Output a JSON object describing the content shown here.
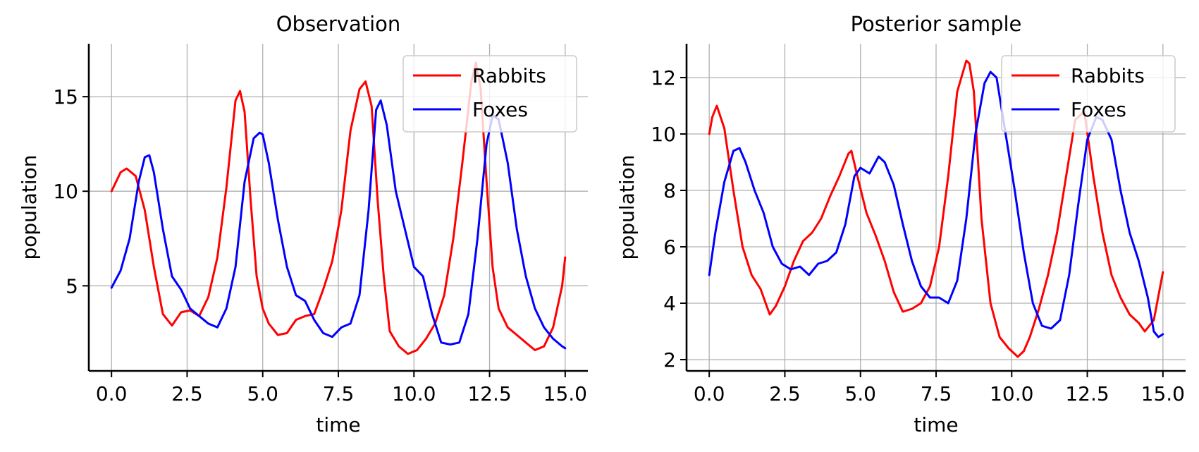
{
  "chart_data": [
    {
      "type": "line",
      "title": "Observation",
      "xlabel": "time",
      "ylabel": "population",
      "xlim": [
        -0.75,
        15.75
      ],
      "ylim": [
        0.5,
        17.8
      ],
      "xticks": [
        0,
        2.5,
        5,
        7.5,
        10,
        12.5,
        15
      ],
      "xtick_labels": [
        "0.0",
        "2.5",
        "5.0",
        "7.5",
        "10.0",
        "12.5",
        "15.0"
      ],
      "yticks": [
        5,
        10,
        15
      ],
      "ytick_labels": [
        "5",
        "10",
        "15"
      ],
      "grid": true,
      "legend_position": "upper right",
      "series": [
        {
          "name": "Rabbits",
          "color": "#ff0000",
          "x": [
            0,
            0.3,
            0.5,
            0.8,
            1.1,
            1.4,
            1.7,
            2.0,
            2.3,
            2.6,
            2.9,
            3.2,
            3.5,
            3.8,
            4.1,
            4.25,
            4.4,
            4.6,
            4.8,
            5.0,
            5.2,
            5.5,
            5.8,
            6.1,
            6.4,
            6.7,
            7.0,
            7.3,
            7.6,
            7.9,
            8.2,
            8.4,
            8.6,
            8.8,
            9.0,
            9.2,
            9.5,
            9.8,
            10.1,
            10.4,
            10.7,
            11.0,
            11.3,
            11.6,
            11.9,
            12.05,
            12.2,
            12.4,
            12.6,
            12.8,
            13.1,
            13.4,
            13.7,
            14.0,
            14.3,
            14.6,
            14.9,
            15.0
          ],
          "y": [
            10.0,
            11.0,
            11.2,
            10.8,
            9.0,
            6.0,
            3.5,
            2.9,
            3.6,
            3.7,
            3.4,
            4.4,
            6.5,
            10.2,
            14.8,
            15.3,
            14.2,
            9.5,
            5.5,
            3.8,
            3.0,
            2.4,
            2.5,
            3.2,
            3.4,
            3.5,
            4.8,
            6.3,
            9.0,
            13.2,
            15.4,
            15.8,
            14.5,
            9.5,
            5.5,
            2.6,
            1.8,
            1.4,
            1.6,
            2.2,
            3.0,
            4.5,
            7.5,
            11.5,
            15.8,
            16.8,
            15.5,
            10.5,
            6.0,
            3.8,
            2.8,
            2.4,
            2.0,
            1.6,
            1.8,
            2.8,
            5.0,
            6.5
          ]
        },
        {
          "name": "Foxes",
          "color": "#0000ff",
          "x": [
            0,
            0.3,
            0.6,
            0.9,
            1.1,
            1.25,
            1.4,
            1.7,
            2.0,
            2.3,
            2.6,
            2.9,
            3.2,
            3.5,
            3.8,
            4.1,
            4.4,
            4.7,
            4.9,
            5.0,
            5.2,
            5.5,
            5.8,
            6.1,
            6.4,
            6.7,
            7.0,
            7.3,
            7.6,
            7.9,
            8.2,
            8.5,
            8.75,
            8.9,
            9.1,
            9.4,
            9.7,
            10.0,
            10.3,
            10.6,
            10.9,
            11.2,
            11.5,
            11.8,
            12.1,
            12.4,
            12.6,
            12.8,
            13.1,
            13.4,
            13.7,
            14.0,
            14.3,
            14.6,
            14.9,
            15.0
          ],
          "y": [
            4.9,
            5.8,
            7.5,
            10.5,
            11.8,
            11.9,
            11.0,
            8.0,
            5.5,
            4.8,
            3.8,
            3.4,
            3.0,
            2.8,
            3.8,
            6.0,
            10.5,
            12.8,
            13.1,
            13.0,
            11.5,
            8.5,
            6.0,
            4.5,
            4.2,
            3.2,
            2.5,
            2.3,
            2.8,
            3.0,
            4.5,
            9.0,
            14.3,
            14.8,
            13.5,
            10.0,
            8.0,
            6.0,
            5.5,
            3.5,
            2.0,
            1.9,
            2.0,
            3.5,
            7.5,
            12.5,
            14.0,
            13.8,
            11.5,
            8.0,
            5.5,
            3.8,
            2.8,
            2.2,
            1.8,
            1.7
          ]
        }
      ]
    },
    {
      "type": "line",
      "title": "Posterior sample",
      "xlabel": "time",
      "ylabel": "population",
      "xlim": [
        -0.75,
        15.75
      ],
      "ylim": [
        1.6,
        13.2
      ],
      "xticks": [
        0,
        2.5,
        5,
        7.5,
        10,
        12.5,
        15
      ],
      "xtick_labels": [
        "0.0",
        "2.5",
        "5.0",
        "7.5",
        "10.0",
        "12.5",
        "15.0"
      ],
      "yticks": [
        2,
        4,
        6,
        8,
        10,
        12
      ],
      "ytick_labels": [
        "2",
        "4",
        "6",
        "8",
        "10",
        "12"
      ],
      "grid": true,
      "legend_position": "upper right",
      "series": [
        {
          "name": "Rabbits",
          "color": "#ff0000",
          "x": [
            0,
            0.1,
            0.25,
            0.5,
            0.8,
            1.1,
            1.4,
            1.7,
            2.0,
            2.2,
            2.5,
            2.8,
            3.1,
            3.4,
            3.7,
            4.0,
            4.3,
            4.6,
            4.7,
            4.9,
            5.2,
            5.5,
            5.8,
            6.1,
            6.4,
            6.7,
            7.0,
            7.3,
            7.6,
            7.9,
            8.2,
            8.5,
            8.6,
            8.75,
            9.0,
            9.3,
            9.6,
            9.9,
            10.2,
            10.4,
            10.6,
            10.9,
            11.2,
            11.5,
            11.8,
            12.1,
            12.4,
            12.7,
            13.0,
            13.3,
            13.6,
            13.9,
            14.2,
            14.4,
            14.7,
            15.0
          ],
          "y": [
            10.0,
            10.6,
            11.0,
            10.2,
            8.0,
            6.0,
            5.0,
            4.5,
            3.6,
            3.9,
            4.6,
            5.5,
            6.2,
            6.5,
            7.0,
            7.8,
            8.5,
            9.3,
            9.4,
            8.5,
            7.2,
            6.4,
            5.5,
            4.4,
            3.7,
            3.8,
            4.0,
            4.6,
            6.0,
            8.5,
            11.5,
            12.6,
            12.5,
            11.5,
            7.0,
            4.0,
            2.8,
            2.4,
            2.1,
            2.3,
            2.8,
            3.8,
            5.0,
            6.5,
            8.5,
            10.5,
            10.8,
            8.5,
            6.5,
            5.0,
            4.2,
            3.6,
            3.3,
            3.0,
            3.4,
            5.1
          ]
        },
        {
          "name": "Foxes",
          "color": "#0000ff",
          "x": [
            0,
            0.2,
            0.5,
            0.8,
            1.0,
            1.2,
            1.5,
            1.8,
            2.1,
            2.4,
            2.7,
            3.0,
            3.3,
            3.6,
            3.9,
            4.2,
            4.5,
            4.8,
            5.0,
            5.3,
            5.6,
            5.8,
            6.1,
            6.4,
            6.7,
            7.0,
            7.3,
            7.6,
            7.9,
            8.2,
            8.5,
            8.8,
            9.1,
            9.3,
            9.5,
            9.8,
            10.1,
            10.4,
            10.7,
            11.0,
            11.3,
            11.6,
            11.9,
            12.2,
            12.5,
            12.8,
            13.0,
            13.3,
            13.6,
            13.9,
            14.2,
            14.5,
            14.7,
            14.85,
            15.0
          ],
          "y": [
            5.0,
            6.5,
            8.3,
            9.4,
            9.5,
            9.0,
            8.0,
            7.2,
            6.0,
            5.4,
            5.2,
            5.3,
            5.0,
            5.4,
            5.5,
            5.8,
            6.8,
            8.5,
            8.8,
            8.6,
            9.2,
            9.0,
            8.2,
            6.8,
            5.5,
            4.6,
            4.2,
            4.2,
            4.0,
            4.8,
            7.0,
            10.0,
            11.8,
            12.2,
            12.0,
            10.0,
            8.0,
            5.8,
            4.0,
            3.2,
            3.1,
            3.4,
            5.0,
            7.5,
            9.8,
            10.6,
            10.5,
            9.8,
            8.0,
            6.5,
            5.5,
            4.2,
            3.0,
            2.8,
            2.9
          ]
        }
      ]
    }
  ]
}
